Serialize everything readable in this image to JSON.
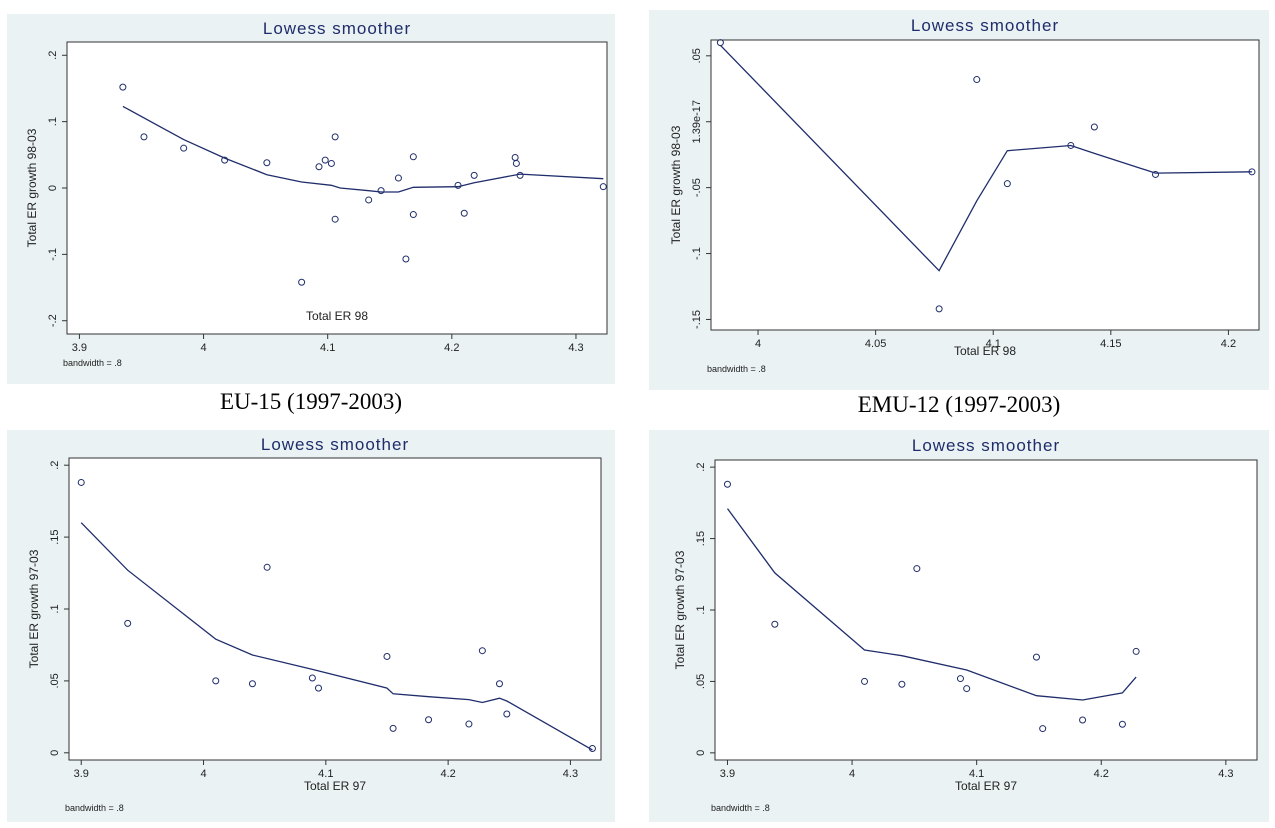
{
  "colors": {
    "line": "#1f2d6b",
    "panel_bg": "#eaf2f3",
    "plot_bg": "#ffffff"
  },
  "chart_data": [
    {
      "type": "scatter",
      "title": "Lowess smoother",
      "xlabel": "Total ER 98",
      "ylabel": "Total ER growth 98-03",
      "note": "bandwidth = .8",
      "caption": "EU-15 (1997-2003)",
      "xlim": [
        3.89,
        4.325
      ],
      "ylim": [
        -0.22,
        0.22
      ],
      "xticks": [
        3.9,
        4.0,
        4.1,
        4.2,
        4.3
      ],
      "xtick_labels": [
        "3.9",
        "4",
        "4.1",
        "4.2",
        "4.3"
      ],
      "yticks": [
        -0.2,
        -0.1,
        0,
        0.1,
        0.2
      ],
      "ytick_labels": [
        "-.2",
        "-.1",
        "0",
        ".1",
        ".2"
      ],
      "points": [
        [
          3.935,
          0.152
        ],
        [
          3.952,
          0.077
        ],
        [
          3.984,
          0.06
        ],
        [
          4.017,
          0.042
        ],
        [
          4.051,
          0.038
        ],
        [
          4.079,
          -0.142
        ],
        [
          4.093,
          0.032
        ],
        [
          4.098,
          0.042
        ],
        [
          4.103,
          0.037
        ],
        [
          4.106,
          0.077
        ],
        [
          4.106,
          -0.047
        ],
        [
          4.133,
          -0.018
        ],
        [
          4.143,
          -0.004
        ],
        [
          4.157,
          0.015
        ],
        [
          4.163,
          -0.107
        ],
        [
          4.169,
          -0.04
        ],
        [
          4.169,
          0.047
        ],
        [
          4.205,
          0.004
        ],
        [
          4.21,
          -0.038
        ],
        [
          4.218,
          0.019
        ],
        [
          4.251,
          0.046
        ],
        [
          4.252,
          0.037
        ],
        [
          4.255,
          0.019
        ],
        [
          4.322,
          0.002
        ]
      ],
      "smooth": [
        [
          3.935,
          0.123
        ],
        [
          3.984,
          0.073
        ],
        [
          4.017,
          0.045
        ],
        [
          4.051,
          0.02
        ],
        [
          4.079,
          0.009
        ],
        [
          4.103,
          0.004
        ],
        [
          4.11,
          0.0
        ],
        [
          4.133,
          -0.004
        ],
        [
          4.143,
          -0.006
        ],
        [
          4.157,
          -0.006
        ],
        [
          4.169,
          0.001
        ],
        [
          4.205,
          0.002
        ],
        [
          4.218,
          0.008
        ],
        [
          4.255,
          0.021
        ],
        [
          4.322,
          0.014
        ]
      ]
    },
    {
      "type": "scatter",
      "title": "Lowess smoother",
      "xlabel": "Total ER 98",
      "ylabel": "Total ER growth 98-03",
      "note": "bandwidth = .8",
      "caption": "EMU-12 (1997-2003)",
      "xlim": [
        3.98,
        4.213
      ],
      "ylim": [
        -0.158,
        0.062
      ],
      "xticks": [
        4.0,
        4.05,
        4.1,
        4.15,
        4.2
      ],
      "xtick_labels": [
        "4",
        "4.05",
        "4.1",
        "4.15",
        "4.2"
      ],
      "yticks": [
        -0.15,
        -0.1,
        -0.05,
        0,
        0.05
      ],
      "ytick_labels": [
        "-.15",
        "-.1",
        "-.05",
        "1.39e-17",
        ".05"
      ],
      "points": [
        [
          3.984,
          0.06
        ],
        [
          4.077,
          -0.142
        ],
        [
          4.093,
          0.032
        ],
        [
          4.106,
          -0.047
        ],
        [
          4.133,
          -0.018
        ],
        [
          4.143,
          -0.004
        ],
        [
          4.169,
          -0.04
        ],
        [
          4.21,
          -0.038
        ]
      ],
      "smooth": [
        [
          3.984,
          0.058
        ],
        [
          4.077,
          -0.113
        ],
        [
          4.093,
          -0.06
        ],
        [
          4.106,
          -0.022
        ],
        [
          4.133,
          -0.018
        ],
        [
          4.143,
          -0.024
        ],
        [
          4.169,
          -0.039
        ],
        [
          4.21,
          -0.038
        ]
      ]
    },
    {
      "type": "scatter",
      "title": "Lowess smoother",
      "xlabel": "Total ER 97",
      "ylabel": "Total ER growth 97-03",
      "note": "bandwidth = .8",
      "caption": "",
      "xlim": [
        3.89,
        4.325
      ],
      "ylim": [
        -0.005,
        0.205
      ],
      "xticks": [
        3.9,
        4.0,
        4.1,
        4.2,
        4.3
      ],
      "xtick_labels": [
        "3.9",
        "4",
        "4.1",
        "4.2",
        "4.3"
      ],
      "yticks": [
        0,
        0.05,
        0.1,
        0.15,
        0.2
      ],
      "ytick_labels": [
        "0",
        ".05",
        ".1",
        ".15",
        ".2"
      ],
      "points": [
        [
          3.9,
          0.188
        ],
        [
          3.938,
          0.09
        ],
        [
          4.01,
          0.05
        ],
        [
          4.04,
          0.048
        ],
        [
          4.052,
          0.129
        ],
        [
          4.089,
          0.052
        ],
        [
          4.094,
          0.045
        ],
        [
          4.15,
          0.067
        ],
        [
          4.155,
          0.017
        ],
        [
          4.184,
          0.023
        ],
        [
          4.217,
          0.02
        ],
        [
          4.228,
          0.071
        ],
        [
          4.242,
          0.048
        ],
        [
          4.248,
          0.027
        ],
        [
          4.318,
          0.003
        ]
      ],
      "smooth": [
        [
          3.9,
          0.16
        ],
        [
          3.938,
          0.127
        ],
        [
          4.01,
          0.079
        ],
        [
          4.04,
          0.068
        ],
        [
          4.089,
          0.058
        ],
        [
          4.15,
          0.045
        ],
        [
          4.155,
          0.041
        ],
        [
          4.184,
          0.039
        ],
        [
          4.217,
          0.037
        ],
        [
          4.228,
          0.035
        ],
        [
          4.242,
          0.038
        ],
        [
          4.248,
          0.036
        ],
        [
          4.318,
          0.002
        ]
      ]
    },
    {
      "type": "scatter",
      "title": "Lowess smoother",
      "xlabel": "Total ER 97",
      "ylabel": "Total ER growth 97-03",
      "note": "bandwidth = .8",
      "caption": "",
      "xlim": [
        3.89,
        4.325
      ],
      "ylim": [
        -0.005,
        0.205
      ],
      "xticks": [
        3.9,
        4.0,
        4.1,
        4.2,
        4.3
      ],
      "xtick_labels": [
        "3.9",
        "4",
        "4.1",
        "4.2",
        "4.3"
      ],
      "yticks": [
        0,
        0.05,
        0.1,
        0.15,
        0.2
      ],
      "ytick_labels": [
        "0",
        ".05",
        ".1",
        ".15",
        ".2"
      ],
      "points": [
        [
          3.9,
          0.188
        ],
        [
          3.938,
          0.09
        ],
        [
          4.01,
          0.05
        ],
        [
          4.04,
          0.048
        ],
        [
          4.052,
          0.129
        ],
        [
          4.087,
          0.052
        ],
        [
          4.092,
          0.045
        ],
        [
          4.148,
          0.067
        ],
        [
          4.153,
          0.017
        ],
        [
          4.185,
          0.023
        ],
        [
          4.217,
          0.02
        ],
        [
          4.228,
          0.071
        ]
      ],
      "smooth": [
        [
          3.9,
          0.171
        ],
        [
          3.938,
          0.126
        ],
        [
          4.01,
          0.072
        ],
        [
          4.04,
          0.068
        ],
        [
          4.092,
          0.058
        ],
        [
          4.148,
          0.04
        ],
        [
          4.185,
          0.037
        ],
        [
          4.217,
          0.042
        ],
        [
          4.228,
          0.053
        ]
      ]
    }
  ]
}
